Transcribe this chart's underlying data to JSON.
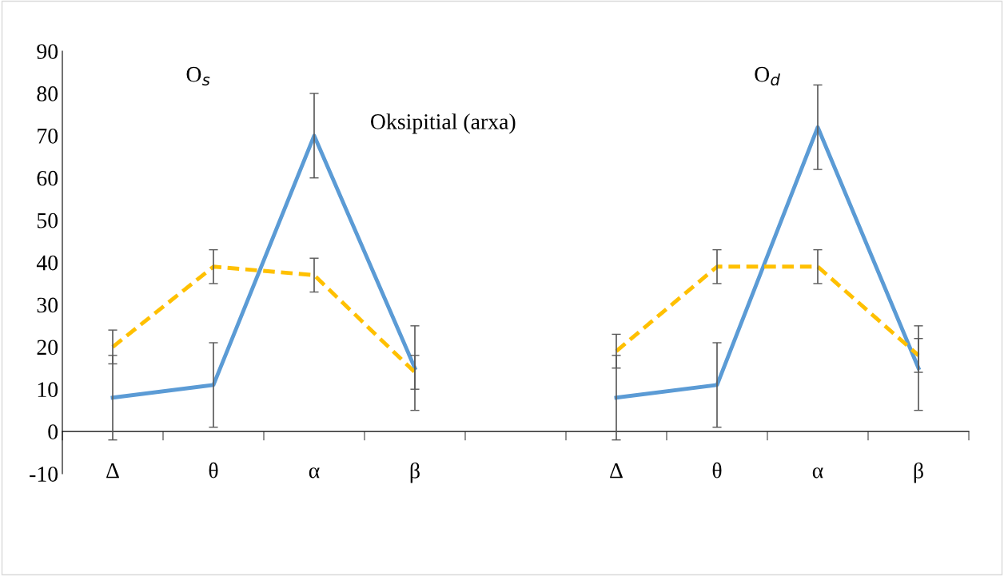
{
  "chart_data": {
    "type": "line",
    "title": "Oksipitial (arxa)",
    "categories": [
      "Δ",
      "θ",
      "α",
      "β",
      null,
      "Δ",
      "θ",
      "α",
      "β"
    ],
    "series": [
      {
        "color": "#5b9bd5",
        "line_style": "solid",
        "values": [
          8,
          11,
          70,
          15,
          null,
          8,
          11,
          72,
          15
        ],
        "errors": [
          10,
          10,
          10,
          10,
          null,
          10,
          10,
          10,
          10
        ]
      },
      {
        "color": "#ffc000",
        "line_style": "dashed",
        "values": [
          20,
          39,
          37,
          14,
          null,
          19,
          39,
          39,
          18
        ],
        "errors": [
          4,
          4,
          4,
          4,
          null,
          4,
          4,
          4,
          4
        ]
      }
    ],
    "annotations": [
      {
        "text": "O$_{s}$"
      },
      {
        "text": "O$_{d}$"
      }
    ],
    "ylim": [
      -10,
      90
    ],
    "yticks": [
      -10,
      0,
      10,
      20,
      30,
      40,
      50,
      60,
      70,
      80,
      90
    ],
    "grid": false,
    "legend": false,
    "marker": "none"
  }
}
